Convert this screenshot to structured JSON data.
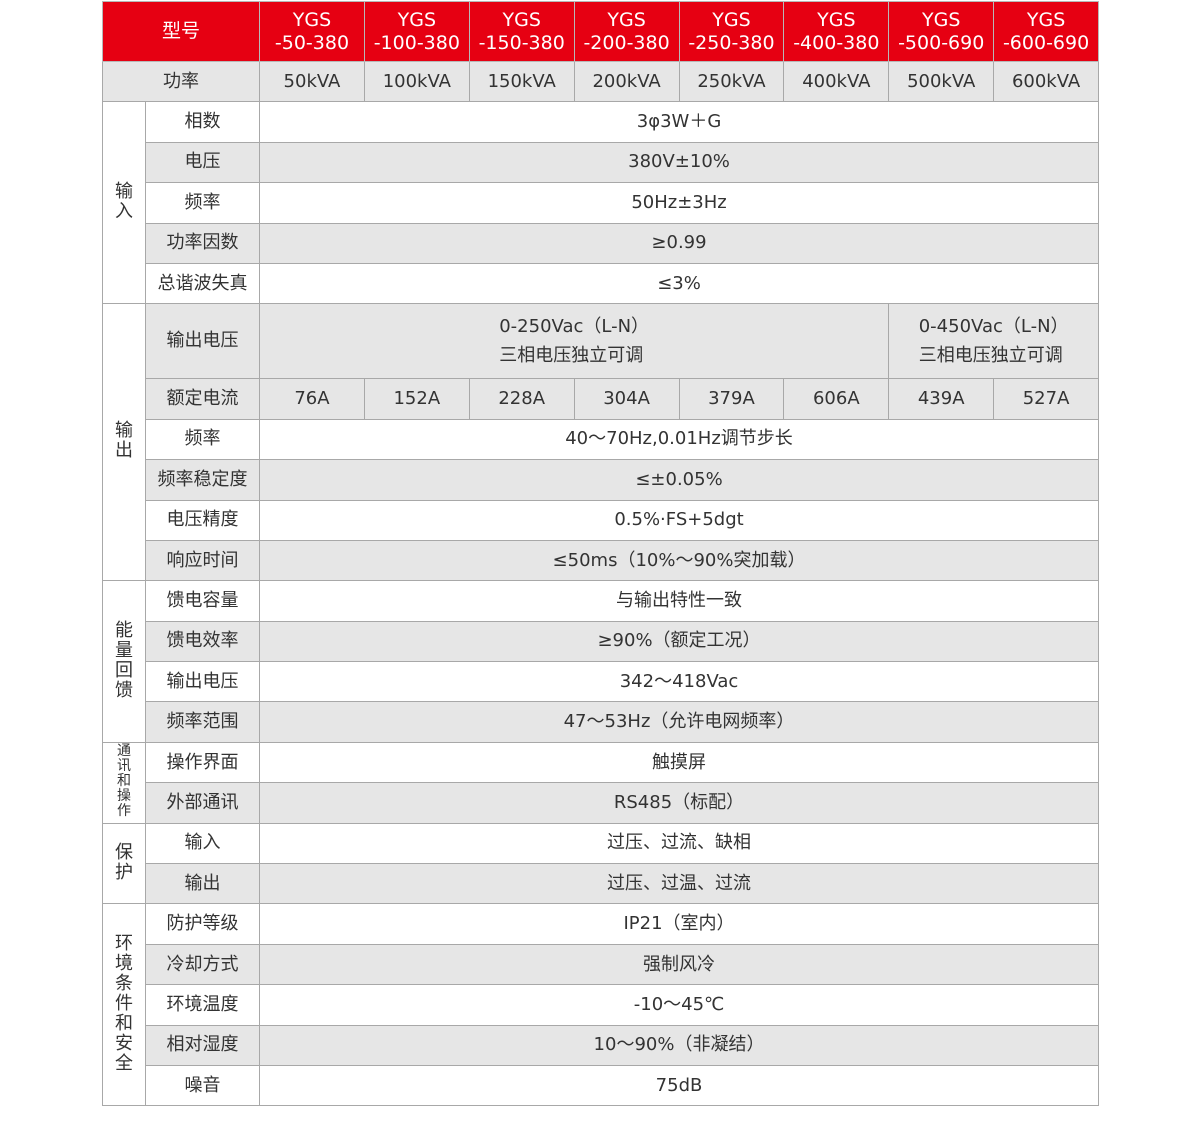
{
  "header": {
    "label": "型号",
    "models": [
      "YGS\n-50-380",
      "YGS\n-100-380",
      "YGS\n-150-380",
      "YGS\n-200-380",
      "YGS\n-250-380",
      "YGS\n-400-380",
      "YGS\n-500-690",
      "YGS\n-600-690"
    ]
  },
  "power": {
    "label": "功率",
    "values": [
      "50kVA",
      "100kVA",
      "150kVA",
      "200kVA",
      "250kVA",
      "400kVA",
      "500kVA",
      "600kVA"
    ]
  },
  "colors": {
    "header_bg": "#e60012",
    "row_alt_bg": "#e6e6e6",
    "border": "#a8a8a8"
  },
  "groups": [
    {
      "name": "输入",
      "rows": [
        {
          "label": "相数",
          "value": "3φ3W＋G"
        },
        {
          "label": "电压",
          "value": "380V±10%"
        },
        {
          "label": "频率",
          "value": "50Hz±3Hz"
        },
        {
          "label": "功率因数",
          "value": "≥0.99"
        },
        {
          "label": "总谐波失真",
          "value": "≤3%"
        }
      ]
    },
    {
      "name": "输出",
      "rows": [
        {
          "label": "输出电压",
          "split": [
            {
              "span": 6,
              "value": "0-250Vac（L-N）\n三相电压独立可调"
            },
            {
              "span": 2,
              "value": "0-450Vac（L-N）\n三相电压独立可调"
            }
          ]
        },
        {
          "label": "额定电流",
          "values": [
            "76A",
            "152A",
            "228A",
            "304A",
            "379A",
            "606A",
            "439A",
            "527A"
          ]
        },
        {
          "label": "频率",
          "value": "40～70Hz,0.01Hz调节步长"
        },
        {
          "label": "频率稳定度",
          "value": "≤±0.05%"
        },
        {
          "label": "电压精度",
          "value": "0.5%·FS+5dgt"
        },
        {
          "label": "响应时间",
          "value": "≤50ms（10%～90%突加载）"
        }
      ]
    },
    {
      "name": "能量回馈",
      "rows": [
        {
          "label": "馈电容量",
          "value": "与输出特性一致"
        },
        {
          "label": "馈电效率",
          "value": "≥90%（额定工况）"
        },
        {
          "label": "输出电压",
          "value": "342～418Vac"
        },
        {
          "label": "频率范围",
          "value": "47～53Hz（允许电网频率）"
        }
      ]
    },
    {
      "name": "通讯和操作",
      "rows": [
        {
          "label": "操作界面",
          "value": "触摸屏"
        },
        {
          "label": "外部通讯",
          "value": "RS485（标配）"
        }
      ]
    },
    {
      "name": "保护",
      "rows": [
        {
          "label": "输入",
          "value": "过压、过流、缺相"
        },
        {
          "label": "输出",
          "value": "过压、过温、过流"
        }
      ]
    },
    {
      "name": "环境条件和安全",
      "rows": [
        {
          "label": "防护等级",
          "value": "IP21（室内）"
        },
        {
          "label": "冷却方式",
          "value": "强制风冷"
        },
        {
          "label": "环境温度",
          "value": "-10～45℃"
        },
        {
          "label": "相对湿度",
          "value": "10～90%（非凝结）"
        },
        {
          "label": "噪音",
          "value": "75dB"
        }
      ]
    }
  ]
}
